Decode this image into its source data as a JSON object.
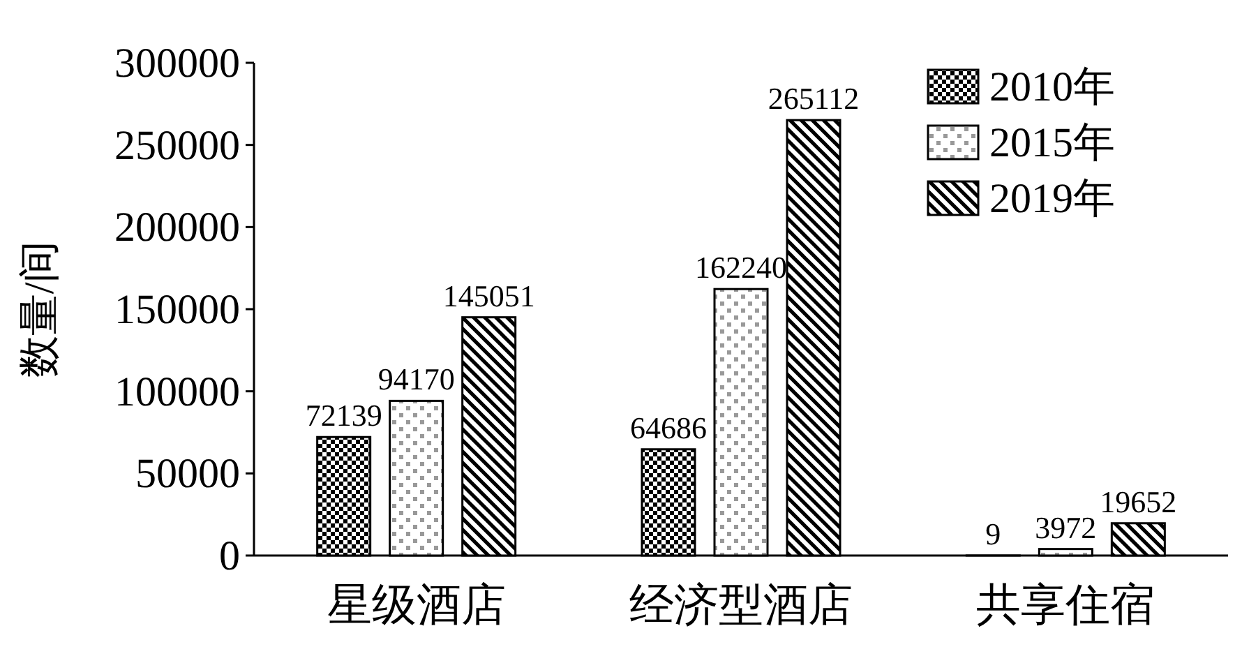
{
  "chart_data": {
    "type": "bar",
    "ylabel": "数量/间",
    "categories": [
      "星级酒店",
      "经济型酒店",
      "共享住宿"
    ],
    "series": [
      {
        "name": "2010年",
        "color": "#000000",
        "values": [
          72139,
          64686,
          9
        ]
      },
      {
        "name": "2015年",
        "color": "#000000",
        "values": [
          94170,
          162240,
          3972
        ]
      },
      {
        "name": "2019年",
        "color": "#000000",
        "values": [
          145051,
          265112,
          19652
        ]
      }
    ],
    "ylim": [
      0,
      300000
    ],
    "yticks": [
      0,
      50000,
      100000,
      150000,
      200000,
      250000,
      300000
    ],
    "grid": false,
    "legend": "top right",
    "data_labels": true
  }
}
